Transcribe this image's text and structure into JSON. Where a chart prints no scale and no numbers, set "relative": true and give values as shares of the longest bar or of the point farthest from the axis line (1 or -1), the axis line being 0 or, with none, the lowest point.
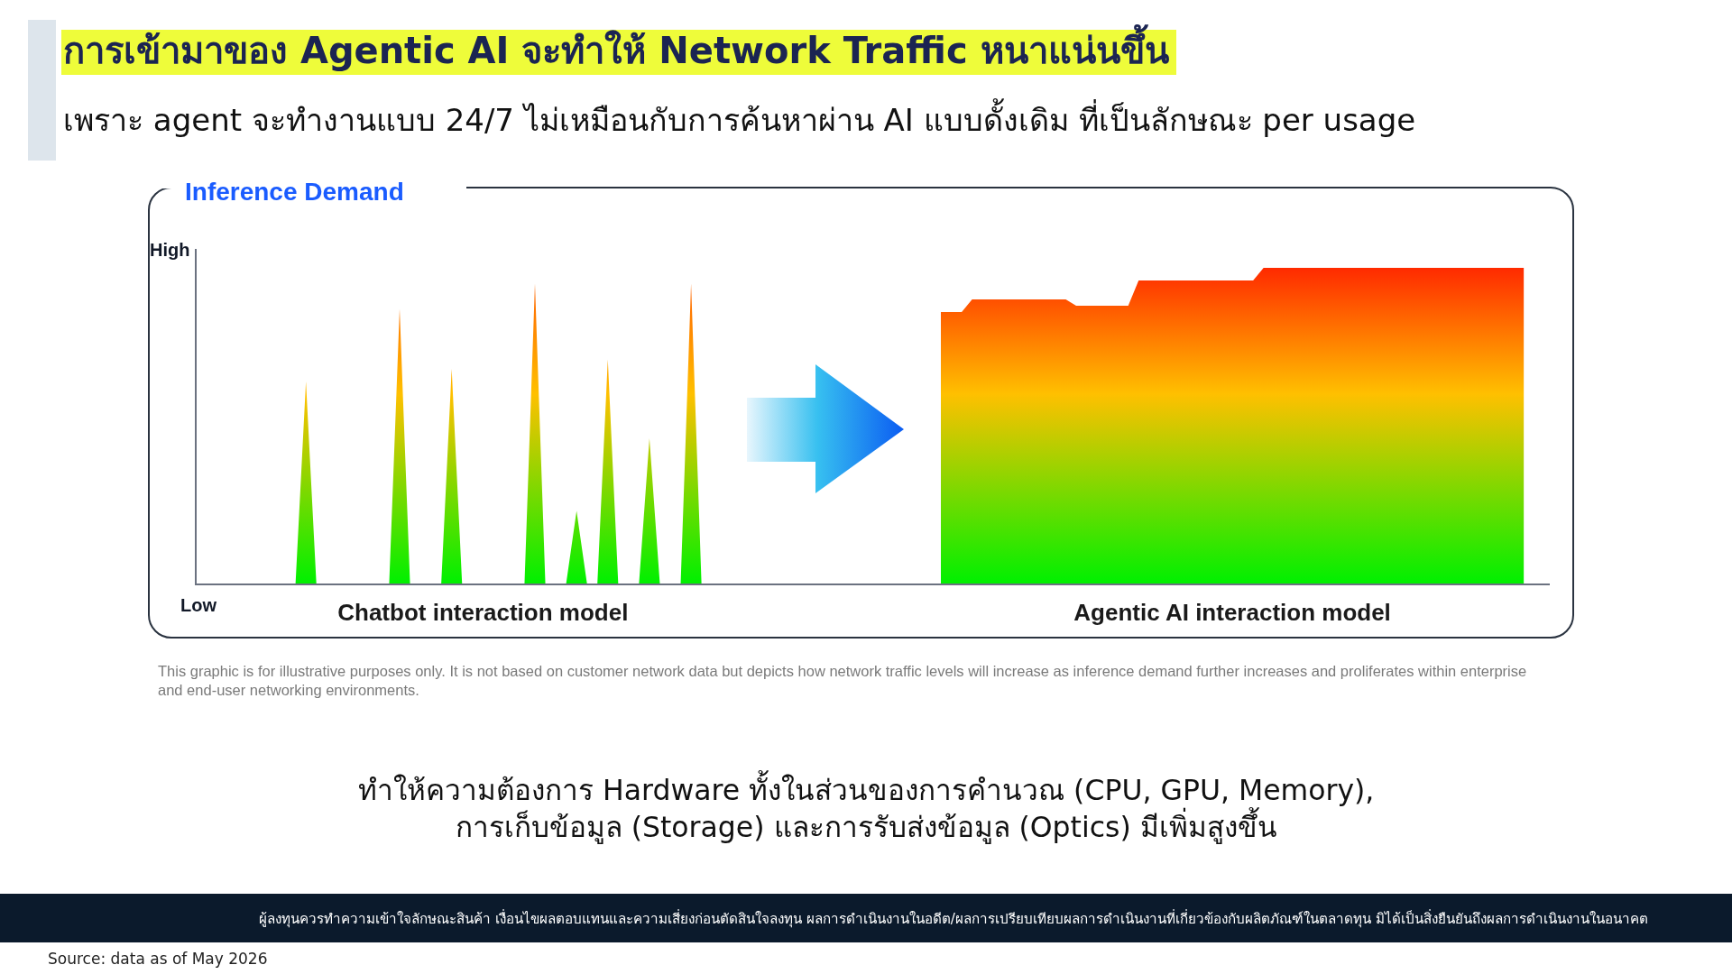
{
  "chart_data": {
    "type": "area",
    "relative": true,
    "tick_labels": "x",
    "title": "การเข้ามาของ Agentic AI จะทำให้ Network Traffic หนาแน่นขึ้น",
    "subtitle": "เพราะ agent จะทำงานแบบ 24/7 ไม่เหมือนกับการค้นหาผ่าน AI แบบดั้งเดิม ที่เป็นลักษณะ per usage",
    "ylabel": "Inference Demand",
    "categories": [
      null,
      null,
      null,
      null,
      null,
      null,
      null,
      null,
      null,
      null,
      null,
      null,
      null,
      null,
      null,
      null,
      null,
      null,
      null,
      null,
      null,
      null,
      null,
      null,
      null,
      null,
      null,
      "Chatbot interaction model",
      null,
      null,
      null,
      null,
      null,
      null,
      null,
      null,
      null,
      null,
      null,
      null,
      null,
      null,
      null,
      null,
      null,
      null,
      null,
      null,
      null,
      null,
      null,
      null,
      null,
      null,
      null,
      null,
      null,
      null,
      null,
      null,
      null,
      null,
      null,
      null,
      null,
      null,
      null,
      null,
      null,
      null,
      null,
      null,
      null,
      null,
      null,
      null,
      null,
      null,
      null,
      null,
      null,
      null,
      null,
      null,
      null,
      null,
      null,
      null,
      null,
      null,
      null,
      null,
      null,
      null,
      null,
      null,
      null,
      null,
      null,
      "Agentic AI interaction model",
      null,
      null,
      null,
      null,
      null,
      null,
      null,
      null,
      null,
      null,
      null,
      null,
      null,
      null,
      null,
      null,
      null,
      null,
      null,
      null,
      null,
      null,
      null,
      null,
      null,
      null,
      null,
      null,
      null,
      null
    ],
    "series": [
      {
        "color": "#ff5500",
        "values": [
          null,
          null,
          null,
          null,
          null,
          null,
          null,
          null,
          null,
          0,
          0.64,
          0,
          null,
          null,
          null,
          null,
          null,
          null,
          0,
          0.87,
          0,
          null,
          null,
          0,
          0.68,
          0,
          null,
          null,
          null,
          null,
          null,
          0,
          0.95,
          0,
          null,
          0,
          0.23,
          0,
          0,
          0.71,
          0,
          null,
          0,
          0.46,
          0,
          null,
          0,
          0.95,
          0,
          null,
          null,
          null,
          null,
          null,
          null,
          null,
          null,
          null,
          null,
          null,
          null,
          null,
          null,
          null,
          null,
          null,
          null,
          null,
          null,
          null,
          null,
          null,
          null,
          null,
          null,
          null,
          null,
          null,
          null,
          null,
          null,
          null,
          null,
          null,
          null,
          null,
          null,
          null,
          null,
          null,
          null,
          null,
          null,
          null,
          null,
          null,
          null,
          null,
          null,
          null,
          null,
          null,
          null,
          null,
          null,
          null,
          null,
          null,
          null,
          null,
          null,
          null,
          null,
          null,
          null,
          null,
          null,
          null,
          null,
          null,
          null,
          null,
          null,
          null,
          null,
          null,
          null,
          null,
          null,
          null
        ]
      },
      {
        "color": "#ff2a00",
        "values": [
          null,
          null,
          null,
          null,
          null,
          null,
          null,
          null,
          null,
          null,
          null,
          null,
          null,
          null,
          null,
          null,
          null,
          null,
          null,
          null,
          null,
          null,
          null,
          null,
          null,
          null,
          null,
          null,
          null,
          null,
          null,
          null,
          null,
          null,
          null,
          null,
          null,
          null,
          null,
          null,
          null,
          null,
          null,
          null,
          null,
          null,
          null,
          null,
          null,
          null,
          null,
          null,
          null,
          null,
          null,
          null,
          null,
          null,
          null,
          null,
          null,
          null,
          null,
          null,
          null,
          null,
          null,
          null,
          null,
          null,
          null,
          0.86,
          0.86,
          0.86,
          0.9,
          0.9,
          0.9,
          0.9,
          0.9,
          0.9,
          0.9,
          0.9,
          0.9,
          0.9,
          0.88,
          0.88,
          0.88,
          0.88,
          0.88,
          0.88,
          0.96,
          0.96,
          0.96,
          0.96,
          0.96,
          0.96,
          0.96,
          0.96,
          0.96,
          0.96,
          0.96,
          0.96,
          1,
          1,
          1,
          1,
          1,
          1,
          1,
          1,
          1,
          1,
          1,
          1,
          1,
          1,
          1,
          1,
          1,
          1,
          1,
          1,
          1,
          1,
          1,
          1,
          1,
          1,
          null,
          null
        ]
      }
    ],
    "annotations": [
      "High",
      "Low",
      "This graphic is for illustrative purposes only. It is not based on customer network data but depicts how network traffic levels will increase as inference demand further increases and proliferates within enterprise and end-user networking environments.",
      "ทำให้ความต้องการ Hardware ทั้งในส่วนของการคำนวณ (CPU, GPU, Memory),\nการเก็บข้อมูล (Storage) และการรับส่งข้อมูล (Optics) มีเพิ่มสูงขึ้น",
      "ผู้ลงทุนควรทำความเข้าใจลักษณะสินค้า เงื่อนไขผลตอบแทนและความเสี่ยงก่อนตัดสินใจลงทุน ผลการดำเนินงานในอดีต/ผลการเปรียบเทียบผลการดำเนินงานที่เกี่ยวข้องกับผลิตภัณฑ์ในตลาดทุน มิได้เป็นสิ่งยืนยันถึงผลการดำเนินงานในอนาคต",
      "Source: data as of May 2026"
    ]
  }
}
